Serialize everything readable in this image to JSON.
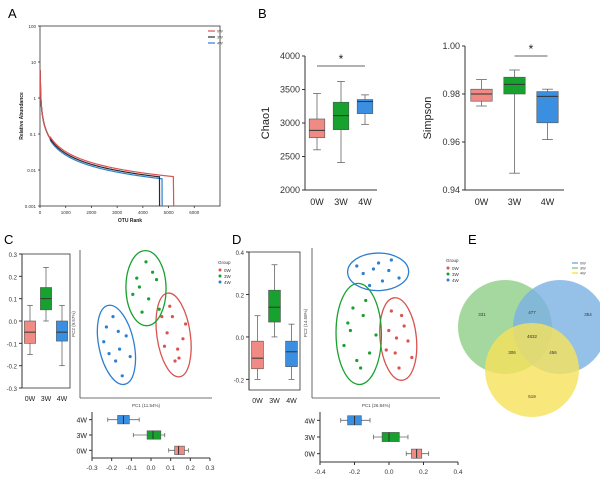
{
  "panels": {
    "A": "A",
    "B": "B",
    "C": "C",
    "D": "D",
    "E": "E"
  },
  "colors": {
    "w0": "#f08a84",
    "w3": "#17a12e",
    "w4": "#3b8fe0",
    "w0_line": "#d9534f",
    "w4_line": "#2f7fd0",
    "venn_green": "#8fce86",
    "venn_blue": "#7ab2e4",
    "venn_yellow": "#f6e25a"
  },
  "chart_data": [
    {
      "id": "A",
      "type": "line",
      "title": "",
      "xlabel": "OTU Rank",
      "ylabel": "Relative Abundance",
      "log_y": true,
      "xlim": [
        0,
        7000
      ],
      "ylim": [
        0.001,
        100
      ],
      "x_ticks": [
        "0",
        "1000",
        "2000",
        "3000",
        "4000",
        "5000",
        "6000"
      ],
      "y_ticks": [
        "100",
        "10",
        "1",
        "0.1",
        "0.01",
        "0.001"
      ],
      "legend": {
        "position": "top-right",
        "entries": [
          "0W",
          "3W",
          "4W"
        ]
      },
      "series": [
        {
          "name": "0W",
          "end_rank": 5200
        },
        {
          "name": "3W",
          "end_rank": 4650
        },
        {
          "name": "4W",
          "end_rank": 4750
        }
      ]
    },
    {
      "id": "B1",
      "type": "box",
      "ylabel": "Chao1",
      "ylim": [
        2000,
        4000
      ],
      "y_ticks": [
        "2000",
        "2500",
        "3000",
        "3500",
        "4000"
      ],
      "categories": [
        "0W",
        "3W",
        "4W"
      ],
      "boxes": [
        {
          "name": "0W",
          "min": 2600,
          "q1": 2780,
          "median": 2890,
          "q3": 3060,
          "max": 3440
        },
        {
          "name": "3W",
          "min": 2410,
          "q1": 2900,
          "median": 3110,
          "q3": 3310,
          "max": 3620
        },
        {
          "name": "4W",
          "min": 2980,
          "q1": 3140,
          "median": 3320,
          "q3": 3350,
          "max": 3420
        }
      ],
      "significance": {
        "label": "*",
        "from": "0W",
        "to": "4W"
      }
    },
    {
      "id": "B2",
      "type": "box",
      "ylabel": "Simpson",
      "ylim": [
        0.94,
        1.0
      ],
      "y_ticks": [
        "0.94",
        "0.96",
        "0.98",
        "1.00"
      ],
      "categories": [
        "0W",
        "3W",
        "4W"
      ],
      "boxes": [
        {
          "name": "0W",
          "min": 0.975,
          "q1": 0.977,
          "median": 0.98,
          "q3": 0.982,
          "max": 0.986
        },
        {
          "name": "3W",
          "min": 0.947,
          "q1": 0.98,
          "median": 0.984,
          "q3": 0.987,
          "max": 0.99
        },
        {
          "name": "4W",
          "min": 0.961,
          "q1": 0.968,
          "median": 0.979,
          "q3": 0.981,
          "max": 0.982
        }
      ],
      "significance": {
        "label": "*",
        "from": "3W",
        "to": "4W"
      }
    },
    {
      "id": "C1",
      "type": "box",
      "ylim": [
        -0.3,
        0.3
      ],
      "y_ticks": [
        "0.3",
        "0.2",
        "0.1",
        "0.0",
        "-0.1",
        "-0.2",
        "-0.3"
      ],
      "categories": [
        "0W",
        "3W",
        "4W"
      ],
      "boxes": [
        {
          "name": "0W",
          "min": -0.15,
          "q1": -0.1,
          "median": -0.05,
          "q3": 0.0,
          "max": 0.07
        },
        {
          "name": "3W",
          "min": 0.0,
          "q1": 0.05,
          "median": 0.1,
          "q3": 0.15,
          "max": 0.24
        },
        {
          "name": "4W",
          "min": -0.2,
          "q1": -0.09,
          "median": -0.05,
          "q3": 0.0,
          "max": 0.07
        }
      ]
    },
    {
      "id": "C2",
      "type": "scatter",
      "xlabel": "PC1 (11.54%)",
      "ylabel": "PC2 (9.57%)",
      "legend": {
        "title": "Group",
        "position": "right",
        "entries": [
          "0W",
          "3W",
          "4W"
        ]
      },
      "series": [
        {
          "name": "0W",
          "points": [
            [
              0.64,
              0.35
            ],
            [
              0.7,
              0.55
            ],
            [
              0.66,
              0.44
            ],
            [
              0.74,
              0.33
            ],
            [
              0.8,
              0.5
            ],
            [
              0.75,
              0.27
            ],
            [
              0.62,
              0.55
            ],
            [
              0.68,
              0.62
            ],
            [
              0.78,
              0.4
            ],
            [
              0.72,
              0.25
            ]
          ]
        },
        {
          "name": "3W",
          "points": [
            [
              0.45,
              0.75
            ],
            [
              0.58,
              0.8
            ],
            [
              0.52,
              0.67
            ],
            [
              0.4,
              0.7
            ],
            [
              0.47,
              0.58
            ],
            [
              0.55,
              0.85
            ],
            [
              0.6,
              0.6
            ],
            [
              0.5,
              0.92
            ],
            [
              0.43,
              0.81
            ]
          ]
        },
        {
          "name": "4W",
          "points": [
            [
              0.2,
              0.48
            ],
            [
              0.3,
              0.33
            ],
            [
              0.22,
              0.3
            ],
            [
              0.35,
              0.42
            ],
            [
              0.27,
              0.25
            ],
            [
              0.18,
              0.38
            ],
            [
              0.32,
              0.15
            ],
            [
              0.25,
              0.55
            ],
            [
              0.38,
              0.28
            ],
            [
              0.29,
              0.45
            ]
          ]
        }
      ]
    },
    {
      "id": "C3",
      "type": "box",
      "orientation": "horizontal",
      "xlim": [
        -0.3,
        0.3
      ],
      "x_ticks": [
        "-0.3",
        "-0.2",
        "-0.1",
        "0.0",
        "0.1",
        "0.2",
        "0.3"
      ],
      "categories": [
        "4W",
        "3W",
        "0W"
      ],
      "boxes": [
        {
          "name": "4W",
          "min": -0.22,
          "q1": -0.17,
          "median": -0.14,
          "q3": -0.11,
          "max": -0.06
        },
        {
          "name": "3W",
          "min": -0.09,
          "q1": -0.02,
          "median": 0.01,
          "q3": 0.05,
          "max": 0.07
        },
        {
          "name": "0W",
          "min": 0.09,
          "q1": 0.12,
          "median": 0.14,
          "q3": 0.17,
          "max": 0.19
        }
      ]
    },
    {
      "id": "D1",
      "type": "box",
      "ylim": [
        -0.25,
        0.4
      ],
      "y_ticks": [
        "0.4",
        "0.2",
        "0.0",
        "-0.2"
      ],
      "categories": [
        "0W",
        "3W",
        "4W"
      ],
      "boxes": [
        {
          "name": "0W",
          "min": -0.2,
          "q1": -0.15,
          "median": -0.1,
          "q3": -0.02,
          "max": 0.1
        },
        {
          "name": "3W",
          "min": 0.0,
          "q1": 0.07,
          "median": 0.14,
          "q3": 0.22,
          "max": 0.34
        },
        {
          "name": "4W",
          "min": -0.2,
          "q1": -0.14,
          "median": -0.07,
          "q3": -0.02,
          "max": 0.06
        }
      ]
    },
    {
      "id": "D2",
      "type": "scatter",
      "xlabel": "PC1 (26.84%)",
      "ylabel": "PC2 (14.58%)",
      "legend": {
        "title": "Group",
        "position": "right",
        "entries": [
          "0W",
          "3W",
          "4W"
        ]
      },
      "series": [
        {
          "name": "0W",
          "points": [
            [
              0.6,
              0.45
            ],
            [
              0.7,
              0.55
            ],
            [
              0.65,
              0.3
            ],
            [
              0.75,
              0.38
            ],
            [
              0.68,
              0.2
            ],
            [
              0.58,
              0.32
            ],
            [
              0.72,
              0.48
            ],
            [
              0.62,
              0.58
            ],
            [
              0.78,
              0.27
            ],
            [
              0.66,
              0.4
            ]
          ]
        },
        {
          "name": "3W",
          "points": [
            [
              0.3,
              0.45
            ],
            [
              0.4,
              0.55
            ],
            [
              0.25,
              0.35
            ],
            [
              0.45,
              0.3
            ],
            [
              0.35,
              0.25
            ],
            [
              0.32,
              0.6
            ],
            [
              0.5,
              0.42
            ],
            [
              0.28,
              0.5
            ],
            [
              0.38,
              0.2
            ],
            [
              0.42,
              0.65
            ]
          ]
        },
        {
          "name": "4W",
          "points": [
            [
              0.4,
              0.83
            ],
            [
              0.52,
              0.9
            ],
            [
              0.6,
              0.85
            ],
            [
              0.45,
              0.75
            ],
            [
              0.68,
              0.8
            ],
            [
              0.55,
              0.78
            ],
            [
              0.35,
              0.88
            ],
            [
              0.62,
              0.92
            ],
            [
              0.48,
              0.86
            ]
          ]
        }
      ]
    },
    {
      "id": "D3",
      "type": "box",
      "orientation": "horizontal",
      "xlim": [
        -0.4,
        0.4
      ],
      "x_ticks": [
        "-0.4",
        "-0.2",
        "0.0",
        "0.2",
        "0.4"
      ],
      "categories": [
        "4W",
        "3W",
        "0W"
      ],
      "boxes": [
        {
          "name": "4W",
          "min": -0.28,
          "q1": -0.24,
          "median": -0.2,
          "q3": -0.16,
          "max": -0.11
        },
        {
          "name": "3W",
          "min": -0.09,
          "q1": -0.04,
          "median": 0.0,
          "q3": 0.06,
          "max": 0.11
        },
        {
          "name": "0W",
          "min": 0.1,
          "q1": 0.13,
          "median": 0.16,
          "q3": 0.19,
          "max": 0.23
        }
      ]
    },
    {
      "id": "E",
      "type": "venn",
      "legend": {
        "position": "top-right",
        "entries": [
          "0W",
          "3W",
          "4W"
        ]
      },
      "sets": [
        "0W",
        "3W",
        "4W"
      ],
      "regions": {
        "only_0W": "331",
        "only_3W": "354",
        "only_4W": "519",
        "0W_3W": "477",
        "0W_4W": "306",
        "3W_4W": "456",
        "all": "4832"
      }
    }
  ]
}
